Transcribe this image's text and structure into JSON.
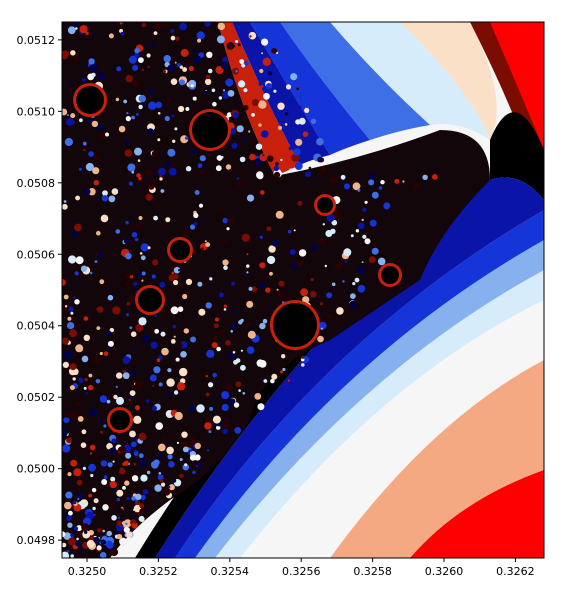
{
  "chart_data": {
    "type": "heatmap",
    "title": "",
    "xlabel": "",
    "ylabel": "",
    "xlim": [
      0.32493,
      0.32628
    ],
    "ylim": [
      0.04975,
      0.05125
    ],
    "x_ticks": [
      "0.3250",
      "0.3252",
      "0.3254",
      "0.3256",
      "0.3258",
      "0.3260",
      "0.3262"
    ],
    "x_tick_values": [
      0.325,
      0.3252,
      0.3254,
      0.3256,
      0.3258,
      0.326,
      0.3262
    ],
    "y_ticks": [
      "0.0498",
      "0.0500",
      "0.0502",
      "0.0504",
      "0.0506",
      "0.0508",
      "0.0510",
      "0.0512"
    ],
    "y_tick_values": [
      0.0498,
      0.05,
      0.0502,
      0.0504,
      0.0506,
      0.0508,
      0.051,
      0.0512
    ],
    "colormap": [
      "#000000",
      "#2b0000",
      "#7a0d00",
      "#c8200a",
      "#f0b48a",
      "#fbe0c8",
      "#f6f6f6",
      "#d6ecfa",
      "#87b0ee",
      "#3f6fe6",
      "#1535d8",
      "#0a14a8",
      "#00004a"
    ],
    "grid": false
  }
}
